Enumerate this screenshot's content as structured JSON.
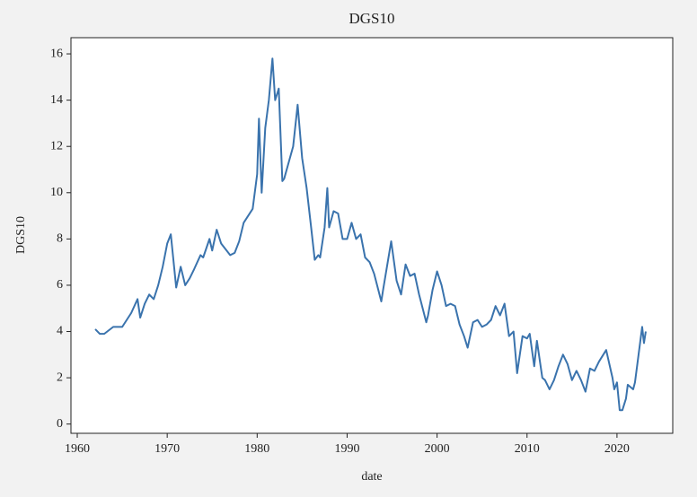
{
  "chart_data": {
    "type": "line",
    "title": "DGS10",
    "xlabel": "date",
    "ylabel": "DGS10",
    "xlim": [
      1959.3,
      2026.2
    ],
    "xticks": [
      1960,
      1970,
      1980,
      1990,
      2000,
      2010,
      2020
    ],
    "ylim": [
      -0.4,
      16.7
    ],
    "yticks": [
      0,
      2,
      4,
      6,
      8,
      10,
      12,
      14,
      16
    ],
    "grid": false,
    "x": [
      1962,
      1962.5,
      1963,
      1964,
      1965,
      1966,
      1966.7,
      1967,
      1967.5,
      1968,
      1968.5,
      1969,
      1969.5,
      1970,
      1970.4,
      1971,
      1971.5,
      1972,
      1972.5,
      1973,
      1973.7,
      1974,
      1974.7,
      1975,
      1975.5,
      1976,
      1977,
      1977.5,
      1978,
      1978.5,
      1979,
      1979.5,
      1980,
      1980.2,
      1980.5,
      1980.9,
      1981.3,
      1981.7,
      1982,
      1982.4,
      1982.8,
      1983,
      1983.5,
      1984,
      1984.5,
      1985,
      1985.5,
      1986,
      1986.4,
      1986.8,
      1987,
      1987.5,
      1987.8,
      1988,
      1988.5,
      1989,
      1989.5,
      1990,
      1990.5,
      1991,
      1991.5,
      1992,
      1992.5,
      1993,
      1993.8,
      1994,
      1994.9,
      1995.5,
      1996,
      1996.5,
      1997,
      1997.5,
      1998,
      1998.8,
      1999,
      1999.5,
      2000,
      2000.5,
      2001,
      2001.5,
      2002,
      2002.5,
      2003,
      2003.4,
      2004,
      2004.5,
      2005,
      2005.5,
      2006,
      2006.5,
      2007,
      2007.5,
      2008,
      2008.5,
      2008.9,
      2009.5,
      2010,
      2010.3,
      2010.8,
      2011.1,
      2011.7,
      2012,
      2012.5,
      2013,
      2013.5,
      2014,
      2014.5,
      2015,
      2015.5,
      2016,
      2016.5,
      2017,
      2017.5,
      2018,
      2018.8,
      2019.5,
      2019.7,
      2020,
      2020.3,
      2020.6,
      2021,
      2021.2,
      2021.8,
      2022,
      2022.4,
      2022.8,
      2023,
      2023.2
    ],
    "series": [
      {
        "name": "DGS10",
        "color": "#3a73ad",
        "values": [
          4.1,
          3.9,
          3.9,
          4.2,
          4.2,
          4.8,
          5.4,
          4.6,
          5.2,
          5.6,
          5.4,
          6.0,
          6.8,
          7.8,
          8.2,
          5.9,
          6.8,
          6.0,
          6.3,
          6.7,
          7.3,
          7.2,
          8.0,
          7.5,
          8.4,
          7.8,
          7.3,
          7.4,
          7.9,
          8.7,
          9.0,
          9.3,
          10.8,
          13.2,
          10.0,
          12.8,
          14.0,
          15.8,
          14.0,
          14.5,
          10.5,
          10.6,
          11.3,
          12.0,
          13.8,
          11.5,
          10.2,
          8.5,
          7.1,
          7.3,
          7.2,
          8.5,
          10.2,
          8.5,
          9.2,
          9.1,
          8.0,
          8.0,
          8.7,
          8.0,
          8.2,
          7.2,
          7.0,
          6.5,
          5.3,
          5.8,
          7.9,
          6.2,
          5.6,
          6.9,
          6.4,
          6.5,
          5.6,
          4.4,
          4.7,
          5.8,
          6.6,
          6.0,
          5.1,
          5.2,
          5.1,
          4.3,
          3.8,
          3.3,
          4.4,
          4.5,
          4.2,
          4.3,
          4.5,
          5.1,
          4.7,
          5.2,
          3.8,
          4.0,
          2.2,
          3.8,
          3.7,
          3.9,
          2.5,
          3.6,
          2.0,
          1.9,
          1.5,
          1.9,
          2.5,
          3.0,
          2.6,
          1.9,
          2.3,
          1.9,
          1.4,
          2.4,
          2.3,
          2.7,
          3.2,
          2.0,
          1.5,
          1.8,
          0.6,
          0.6,
          1.1,
          1.7,
          1.5,
          1.8,
          3.0,
          4.2,
          3.5,
          4.0
        ]
      }
    ]
  }
}
